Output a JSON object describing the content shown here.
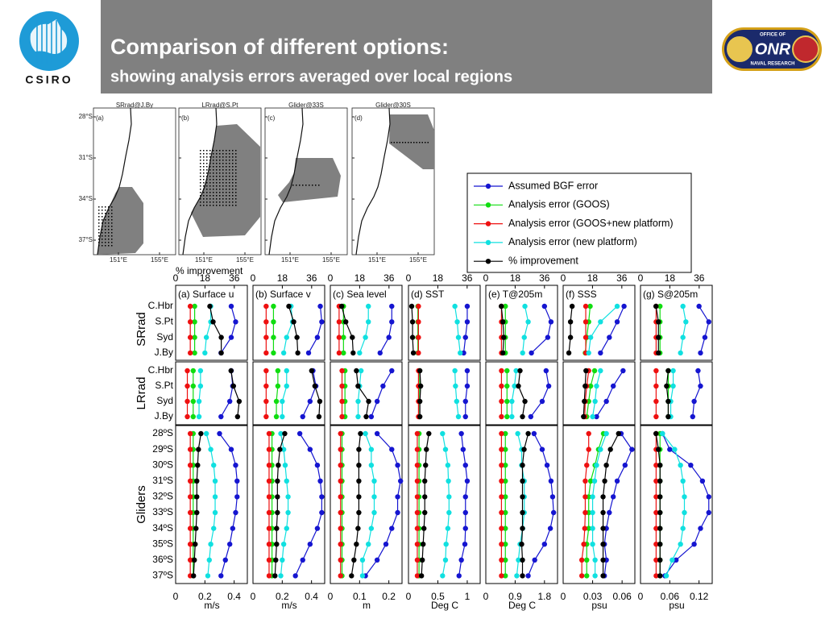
{
  "header": {
    "title": "Comparison of different options:",
    "subtitle": "showing analysis errors averaged over local regions"
  },
  "logos": {
    "left": "CSIRO",
    "right_top": "OFFICE OF",
    "right_mid": "ONR",
    "right_bottom": "NAVAL RESEARCH"
  },
  "maps": {
    "panels": [
      {
        "title": "SRrad@J.By",
        "letter": "(a)"
      },
      {
        "title": "LRrad@S.Pt",
        "letter": "(b)"
      },
      {
        "title": "Glider@33S",
        "letter": "(c)"
      },
      {
        "title": "Glider@30S",
        "letter": "(d)"
      }
    ],
    "yticks": [
      "28°S",
      "31°S",
      "34°S",
      "37°S"
    ],
    "xticks": [
      "151°E",
      "155°E"
    ]
  },
  "chart_data": {
    "type": "line",
    "series": [
      {
        "name": "Assumed BGF error",
        "color": "#1515d0"
      },
      {
        "name": "Analysis error (GOOS)",
        "color": "#10dd10"
      },
      {
        "name": "Analysis error (GOOS+new platform)",
        "color": "#ee1010"
      },
      {
        "name": "Analysis error (new platform)",
        "color": "#10e0e0"
      },
      {
        "name": "% improvement",
        "color": "#000000",
        "axis": "x2"
      }
    ],
    "x2label": "% improvement",
    "x2lim": [
      0,
      44
    ],
    "x2ticks": [
      0,
      18,
      36
    ],
    "groups": [
      {
        "name": "SRrad",
        "categories": [
          "C.Hbr",
          "S.Pt",
          "Syd",
          "J.By"
        ]
      },
      {
        "name": "LRrad",
        "categories": [
          "C.Hbr",
          "S.Pt",
          "Syd",
          "J.By"
        ]
      },
      {
        "name": "Gliders",
        "categories": [
          "28ºS",
          "29ºS",
          "30ºS",
          "31ºS",
          "32ºS",
          "33ºS",
          "34ºS",
          "35ºS",
          "36ºS",
          "37ºS"
        ]
      }
    ],
    "columns": [
      {
        "title": "(a) Surface u",
        "xlabel": "m/s",
        "xlim": [
          0,
          0.49
        ],
        "xticks": [
          0,
          0.2,
          0.4
        ],
        "values": [
          [
            [
              0.38,
              0.41,
              0.38,
              0.31
            ],
            [
              0.13,
              0.13,
              0.13,
              0.13
            ],
            [
              0.1,
              0.1,
              0.1,
              0.1
            ],
            [
              0.24,
              0.24,
              0.21,
              0.2
            ],
            [
              21,
              23,
              28,
              28
            ]
          ],
          [
            [
              0.38,
              0.39,
              0.37,
              0.31
            ],
            [
              0.12,
              0.12,
              0.12,
              0.12
            ],
            [
              0.08,
              0.08,
              0.08,
              0.08
            ],
            [
              0.17,
              0.17,
              0.16,
              0.16
            ],
            [
              34,
              35.5,
              39,
              38
            ]
          ],
          [
            [
              0.3,
              0.38,
              0.41,
              0.42,
              0.42,
              0.41,
              0.39,
              0.37,
              0.34,
              0.31
            ],
            [
              0.12,
              0.12,
              0.12,
              0.12,
              0.12,
              0.12,
              0.12,
              0.12,
              0.12,
              0.12
            ],
            [
              0.1,
              0.1,
              0.1,
              0.1,
              0.1,
              0.1,
              0.1,
              0.1,
              0.1,
              0.1
            ],
            [
              0.21,
              0.24,
              0.26,
              0.27,
              0.27,
              0.27,
              0.26,
              0.24,
              0.23,
              0.22
            ],
            [
              15.5,
              14,
              13.5,
              13,
              13,
              13,
              12.5,
              12,
              11.5,
              11
            ]
          ]
        ]
      },
      {
        "title": "(b) Surface v",
        "xlabel": "m/s",
        "xlim": [
          0,
          0.49
        ],
        "xticks": [
          0,
          0.2,
          0.4
        ],
        "values": [
          [
            [
              0.46,
              0.47,
              0.44,
              0.38
            ],
            [
              0.14,
              0.14,
              0.14,
              0.14
            ],
            [
              0.09,
              0.09,
              0.09,
              0.09
            ],
            [
              0.26,
              0.27,
              0.23,
              0.21
            ],
            [
              22,
              25,
              27,
              27.5
            ]
          ],
          [
            [
              0.41,
              0.43,
              0.39,
              0.34
            ],
            [
              0.17,
              0.17,
              0.16,
              0.16
            ],
            [
              0.09,
              0.09,
              0.09,
              0.09
            ],
            [
              0.23,
              0.23,
              0.2,
              0.2
            ],
            [
              36,
              38,
              41,
              40.5
            ]
          ],
          [
            [
              0.32,
              0.39,
              0.44,
              0.46,
              0.47,
              0.47,
              0.44,
              0.39,
              0.34,
              0.29
            ],
            [
              0.13,
              0.13,
              0.13,
              0.13,
              0.13,
              0.13,
              0.13,
              0.13,
              0.13,
              0.13
            ],
            [
              0.11,
              0.11,
              0.11,
              0.11,
              0.11,
              0.11,
              0.11,
              0.11,
              0.11,
              0.11
            ],
            [
              0.19,
              0.21,
              0.22,
              0.23,
              0.24,
              0.24,
              0.23,
              0.21,
              0.2,
              0.19
            ],
            [
              19.5,
              16.5,
              15.5,
              15,
              15,
              15,
              14.5,
              14.5,
              14,
              13.5
            ]
          ]
        ]
      },
      {
        "title": "(c) Sea level",
        "xlabel": "m",
        "xlim": [
          0,
          0.245
        ],
        "xticks": [
          0,
          0.1,
          0.2
        ],
        "values": [
          [
            [
              0.21,
              0.21,
              0.2,
              0.17
            ],
            [
              0.045,
              0.045,
              0.045,
              0.045
            ],
            [
              0.03,
              0.03,
              0.03,
              0.03
            ],
            [
              0.13,
              0.13,
              0.12,
              0.1
            ],
            [
              7,
              9.5,
              13.5,
              14
            ]
          ],
          [
            [
              0.21,
              0.18,
              0.16,
              0.14
            ],
            [
              0.05,
              0.05,
              0.05,
              0.05
            ],
            [
              0.04,
              0.04,
              0.04,
              0.04
            ],
            [
              0.105,
              0.1,
              0.095,
              0.095
            ],
            [
              16,
              17,
              23.5,
              22
            ]
          ],
          [
            [
              0.16,
              0.21,
              0.23,
              0.24,
              0.23,
              0.23,
              0.21,
              0.19,
              0.16,
              0.12
            ],
            [
              0.04,
              0.04,
              0.04,
              0.04,
              0.04,
              0.04,
              0.04,
              0.04,
              0.04,
              0.04
            ],
            [
              0.035,
              0.035,
              0.035,
              0.035,
              0.035,
              0.035,
              0.035,
              0.035,
              0.035,
              0.035
            ],
            [
              0.12,
              0.14,
              0.14,
              0.15,
              0.15,
              0.15,
              0.14,
              0.13,
              0.11,
              0.11
            ],
            [
              18.5,
              17.5,
              17.5,
              17.5,
              17.5,
              17.5,
              17,
              16,
              14.5,
              13
            ]
          ]
        ]
      },
      {
        "title": "(d) SST",
        "xlabel": "Deg C",
        "xlim": [
          0,
          1.22
        ],
        "xticks": [
          0,
          0.5,
          1
        ],
        "values": [
          [
            [
              1,
              1,
              0.97,
              0.94
            ],
            [
              0.16,
              0.16,
              0.16,
              0.16
            ],
            [
              0.17,
              0.17,
              0.17,
              0.17
            ],
            [
              0.79,
              0.83,
              0.85,
              0.88
            ],
            [
              2,
              2.5,
              2.5,
              3
            ]
          ],
          [
            [
              1,
              1,
              0.97,
              0.97
            ],
            [
              0.19,
              0.19,
              0.19,
              0.19
            ],
            [
              0.17,
              0.17,
              0.17,
              0.17
            ],
            [
              0.79,
              0.8,
              0.82,
              0.85
            ],
            [
              7,
              7.5,
              7,
              7
            ]
          ],
          [
            [
              0.9,
              0.93,
              0.97,
              1,
              0.97,
              0.97,
              0.97,
              0.96,
              0.9,
              0.86
            ],
            [
              0.18,
              0.18,
              0.18,
              0.18,
              0.18,
              0.18,
              0.18,
              0.18,
              0.18,
              0.18
            ],
            [
              0.15,
              0.15,
              0.15,
              0.15,
              0.15,
              0.15,
              0.15,
              0.15,
              0.15,
              0.15
            ],
            [
              0.58,
              0.63,
              0.67,
              0.68,
              0.69,
              0.69,
              0.67,
              0.64,
              0.63,
              0.58
            ],
            [
              12.5,
              11,
              10.5,
              10,
              10,
              10,
              9.5,
              9,
              8.5,
              8
            ]
          ]
        ]
      },
      {
        "title": "(e) T@205m",
        "xlabel": "Deg C",
        "xlim": [
          0,
          2.2
        ],
        "xticks": [
          0,
          0.9,
          1.8
        ],
        "values": [
          [
            [
              1.8,
              2,
              1.9,
              1.4
            ],
            [
              0.6,
              0.6,
              0.6,
              0.6
            ],
            [
              0.48,
              0.48,
              0.48,
              0.48
            ],
            [
              1.2,
              1.3,
              1.18,
              1.13
            ],
            [
              9.5,
              10.5,
              11,
              10.5
            ]
          ],
          [
            [
              1.85,
              1.93,
              1.73,
              1.38
            ],
            [
              0.65,
              0.65,
              0.65,
              0.65
            ],
            [
              0.48,
              0.48,
              0.48,
              0.48
            ],
            [
              0.93,
              0.88,
              0.8,
              0.8
            ],
            [
              21,
              20,
              24,
              22.5
            ]
          ],
          [
            [
              1.48,
              1.73,
              1.88,
              2,
              2.05,
              2.08,
              1.98,
              1.8,
              1.5,
              1.3
            ],
            [
              0.6,
              0.6,
              0.6,
              0.6,
              0.6,
              0.6,
              0.6,
              0.6,
              0.6,
              0.6
            ],
            [
              0.48,
              0.48,
              0.48,
              0.48,
              0.48,
              0.48,
              0.48,
              0.48,
              0.48,
              0.48
            ],
            [
              0.98,
              1.1,
              1.1,
              1.18,
              1.18,
              1.18,
              1.13,
              1.05,
              1,
              0.95
            ],
            [
              26,
              23.5,
              22.5,
              22.5,
              22.5,
              22.5,
              22.5,
              22,
              22.5,
              22.5
            ]
          ]
        ]
      },
      {
        "title": "(f) SSS",
        "xlabel": "psu",
        "xlim": [
          0,
          0.073
        ],
        "xticks": [
          0,
          0.03,
          0.06
        ],
        "values": [
          [
            [
              0.062,
              0.055,
              0.047,
              0.038
            ],
            [
              0.0275,
              0.026,
              0.024,
              0.0225
            ],
            [
              0.023,
              0.023,
              0.023,
              0.023
            ],
            [
              0.055,
              0.038,
              0.028,
              0.026
            ],
            [
              5.5,
              4.5,
              4.5,
              3.5
            ]
          ],
          [
            [
              0.061,
              0.051,
              0.044,
              0.034
            ],
            [
              0.032,
              0.028,
              0.026,
              0.024
            ],
            [
              0.026,
              0.024,
              0.0225,
              0.022
            ],
            [
              0.038,
              0.034,
              0.0325,
              0.03
            ],
            [
              14,
              13.5,
              13,
              12.5
            ]
          ],
          [
            [
              0.059,
              0.07,
              0.063,
              0.055,
              0.051,
              0.047,
              0.044,
              0.042,
              0.044,
              0.042
            ],
            [
              0.041,
              0.036,
              0.0325,
              0.028,
              0.026,
              0.026,
              0.026,
              0.024,
              0.024,
              0.024
            ],
            [
              0.026,
              0.026,
              0.024,
              0.0225,
              0.0225,
              0.0225,
              0.022,
              0.021,
              0.019,
              0.019
            ],
            [
              0.044,
              0.038,
              0.034,
              0.032,
              0.03,
              0.03,
              0.03,
              0.03,
              0.0325,
              0.0325
            ],
            [
              34,
              29,
              26.5,
              25.5,
              24.5,
              24.5,
              24.5,
              24.5,
              24.5,
              24.5
            ]
          ]
        ]
      },
      {
        "title": "(g) S@205m",
        "xlabel": "psu",
        "xlim": [
          0,
          0.147
        ],
        "xticks": [
          0,
          0.06,
          0.12
        ],
        "values": [
          [
            [
              0.12,
              0.14,
              0.132,
              0.123
            ],
            [
              0.04,
              0.04,
              0.04,
              0.04
            ],
            [
              0.032,
              0.032,
              0.032,
              0.032
            ],
            [
              0.087,
              0.093,
              0.087,
              0.082
            ],
            [
              9.5,
              11,
              11,
              11
            ]
          ],
          [
            [
              0.118,
              0.123,
              0.11,
              0.107
            ],
            [
              0.057,
              0.057,
              0.057,
              0.057
            ],
            [
              0.032,
              0.032,
              0.032,
              0.032
            ],
            [
              0.067,
              0.067,
              0.062,
              0.062
            ],
            [
              17,
              16,
              17,
              17
            ]
          ],
          [
            [
              0.045,
              0.06,
              0.103,
              0.127,
              0.14,
              0.14,
              0.123,
              0.11,
              0.073,
              0.05
            ],
            [
              0.04,
              0.04,
              0.04,
              0.04,
              0.04,
              0.04,
              0.04,
              0.04,
              0.04,
              0.04
            ],
            [
              0.032,
              0.032,
              0.032,
              0.032,
              0.032,
              0.032,
              0.032,
              0.032,
              0.032,
              0.032
            ],
            [
              0.045,
              0.07,
              0.082,
              0.087,
              0.09,
              0.09,
              0.087,
              0.082,
              0.065,
              0.053
            ],
            [
              9.5,
              11,
              12,
              12,
              12,
              12,
              12,
              12,
              12,
              12
            ]
          ]
        ]
      }
    ]
  }
}
